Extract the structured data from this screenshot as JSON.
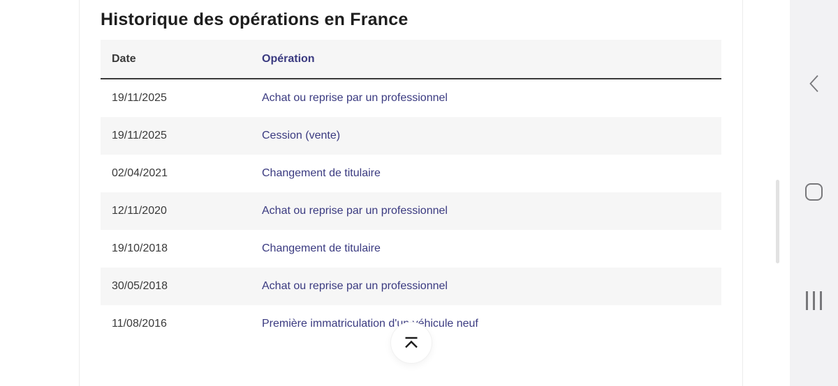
{
  "page": {
    "title": "Historique des opérations en France"
  },
  "table": {
    "columns": {
      "date": "Date",
      "operation": "Opération"
    },
    "rows": [
      {
        "date": "19/11/2025",
        "operation": "Achat ou reprise par un professionnel"
      },
      {
        "date": "19/11/2025",
        "operation": "Cession (vente)"
      },
      {
        "date": "02/04/2021",
        "operation": "Changement de titulaire"
      },
      {
        "date": "12/11/2020",
        "operation": "Achat ou reprise par un professionnel"
      },
      {
        "date": "19/10/2018",
        "operation": "Changement de titulaire"
      },
      {
        "date": "30/05/2018",
        "operation": "Achat ou reprise par un professionnel"
      },
      {
        "date": "11/08/2016",
        "operation": "Première immatriculation d'un véhicule neuf"
      }
    ]
  },
  "icons": {
    "back_to_top": "scroll-to-top-icon",
    "nav_back": "back-chevron-icon",
    "nav_home": "home-icon",
    "nav_recents": "recents-icon"
  },
  "colors": {
    "title_text": "#1e1e1e",
    "date_text": "#3a3a3a",
    "operation_text": "#3a3a80",
    "row_alt_bg": "#f6f6f6",
    "header_border": "#3a3a3a",
    "nav_bar_bg": "#f2f2f4",
    "nav_icon": "#78787b"
  }
}
